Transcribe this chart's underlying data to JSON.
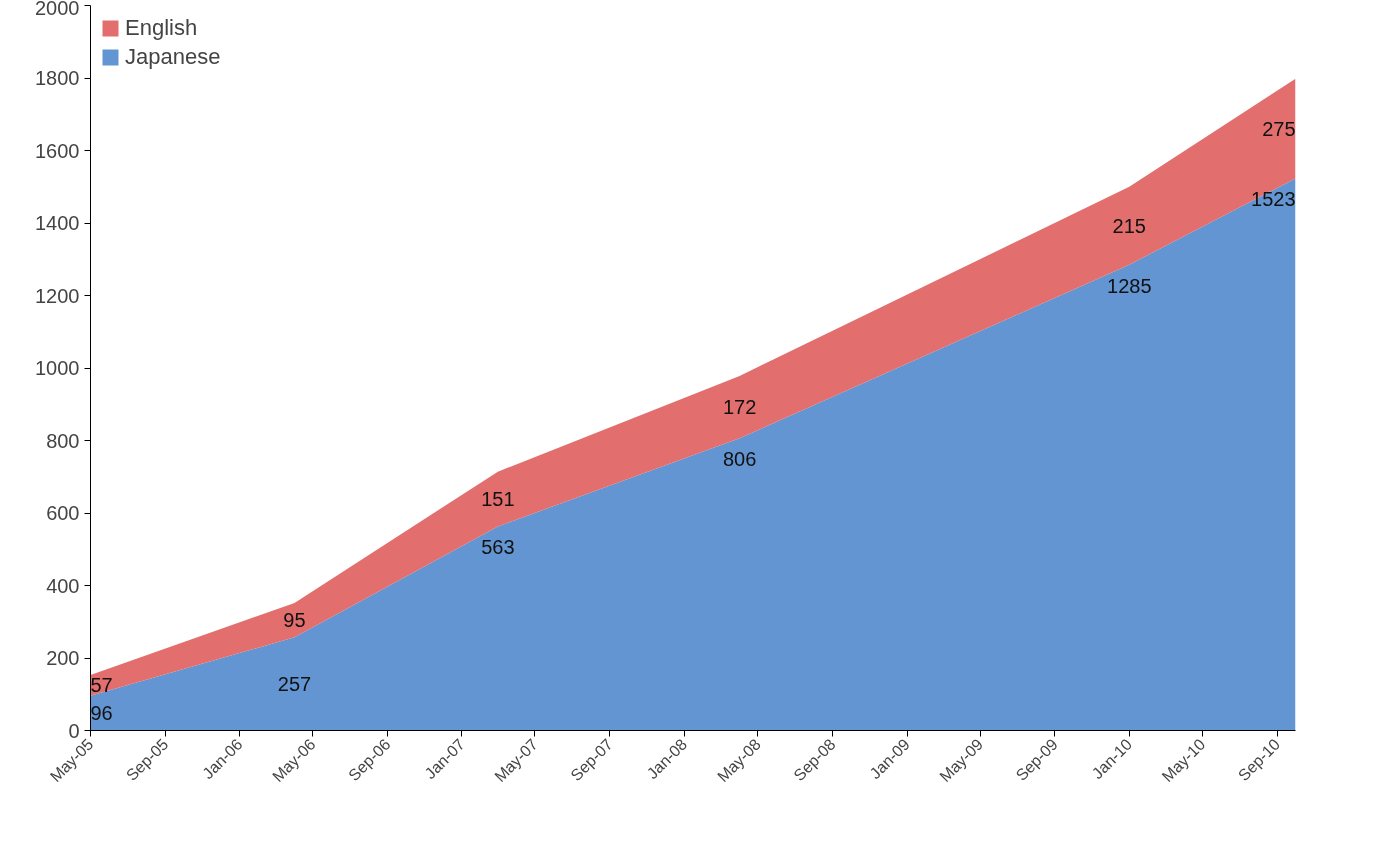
{
  "chart_data": {
    "type": "area",
    "stacked": true,
    "data_labels": true,
    "legend": "top left",
    "grid": false,
    "x": [
      "2005-05",
      "2006-04",
      "2007-03",
      "2008-04",
      "2010-01",
      "2010-10"
    ],
    "series": [
      {
        "name": "Japanese",
        "color": "#5b8fd0",
        "values": [
          96,
          257,
          563,
          806,
          1285,
          1523
        ]
      },
      {
        "name": "English",
        "color": "#e06666",
        "values": [
          57,
          95,
          151,
          172,
          215,
          275
        ]
      }
    ],
    "xlim": [
      "2005-05",
      "2010-10"
    ],
    "xticks": [
      {
        "value": "2005-05",
        "label": "May-05"
      },
      {
        "value": "2005-09",
        "label": "Sep-05"
      },
      {
        "value": "2006-01",
        "label": "Jan-06"
      },
      {
        "value": "2006-05",
        "label": "May-06"
      },
      {
        "value": "2006-09",
        "label": "Sep-06"
      },
      {
        "value": "2007-01",
        "label": "Jan-07"
      },
      {
        "value": "2007-05",
        "label": "May-07"
      },
      {
        "value": "2007-09",
        "label": "Sep-07"
      },
      {
        "value": "2008-01",
        "label": "Jan-08"
      },
      {
        "value": "2008-05",
        "label": "May-08"
      },
      {
        "value": "2008-09",
        "label": "Sep-08"
      },
      {
        "value": "2009-01",
        "label": "Jan-09"
      },
      {
        "value": "2009-05",
        "label": "May-09"
      },
      {
        "value": "2009-09",
        "label": "Sep-09"
      },
      {
        "value": "2010-01",
        "label": "Jan-10"
      },
      {
        "value": "2010-05",
        "label": "May-10"
      },
      {
        "value": "2010-09",
        "label": "Sep-10"
      }
    ],
    "ylim": [
      0,
      2000
    ],
    "yticks": [
      0,
      200,
      400,
      600,
      800,
      1000,
      1200,
      1400,
      1600,
      1800,
      2000
    ]
  }
}
